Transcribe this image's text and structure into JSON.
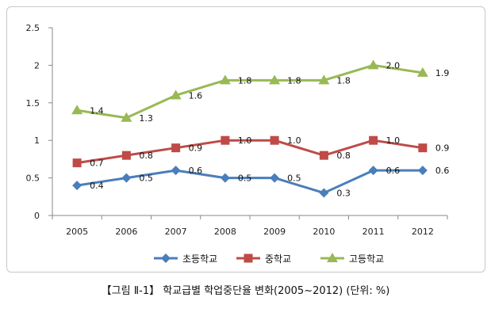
{
  "chart_data": {
    "type": "line",
    "title": "",
    "xlabel": "",
    "ylabel": "",
    "categories": [
      "2005",
      "2006",
      "2007",
      "2008",
      "2009",
      "2010",
      "2011",
      "2012"
    ],
    "ylim": [
      0,
      2.5
    ],
    "yticks": [
      "0",
      "0.5",
      "1",
      "1.5",
      "2",
      "2.5"
    ],
    "ytick_values": [
      0,
      0.5,
      1,
      1.5,
      2,
      2.5
    ],
    "grid": false,
    "legend_position": "bottom",
    "series": [
      {
        "name": "초등학교",
        "color": "#4a7ebb",
        "marker": "diamond",
        "values": [
          0.4,
          0.5,
          0.6,
          0.5,
          0.5,
          0.3,
          0.6,
          0.6
        ],
        "labels": [
          "0.4",
          "0.5",
          "0.6",
          "0.5",
          "0.5",
          "0.3",
          "0.6",
          "0.6"
        ]
      },
      {
        "name": "중학교",
        "color": "#be4b48",
        "marker": "square",
        "values": [
          0.7,
          0.8,
          0.9,
          1.0,
          1.0,
          0.8,
          1.0,
          0.9
        ],
        "labels": [
          "0.7",
          "0.8",
          "0.9",
          "1.0",
          "1.0",
          "0.8",
          "1.0",
          "0.9"
        ]
      },
      {
        "name": "고등학교",
        "color": "#98b954",
        "marker": "triangle",
        "values": [
          1.4,
          1.3,
          1.6,
          1.8,
          1.8,
          1.8,
          2.0,
          1.9
        ],
        "labels": [
          "1.4",
          "1.3",
          "1.6",
          "1.8",
          "1.8",
          "1.8",
          "2.0",
          "1.9"
        ]
      }
    ]
  },
  "caption": "【그림 Ⅱ-1】 학교급별 학업중단율 변화(2005~2012) (단위: %)"
}
